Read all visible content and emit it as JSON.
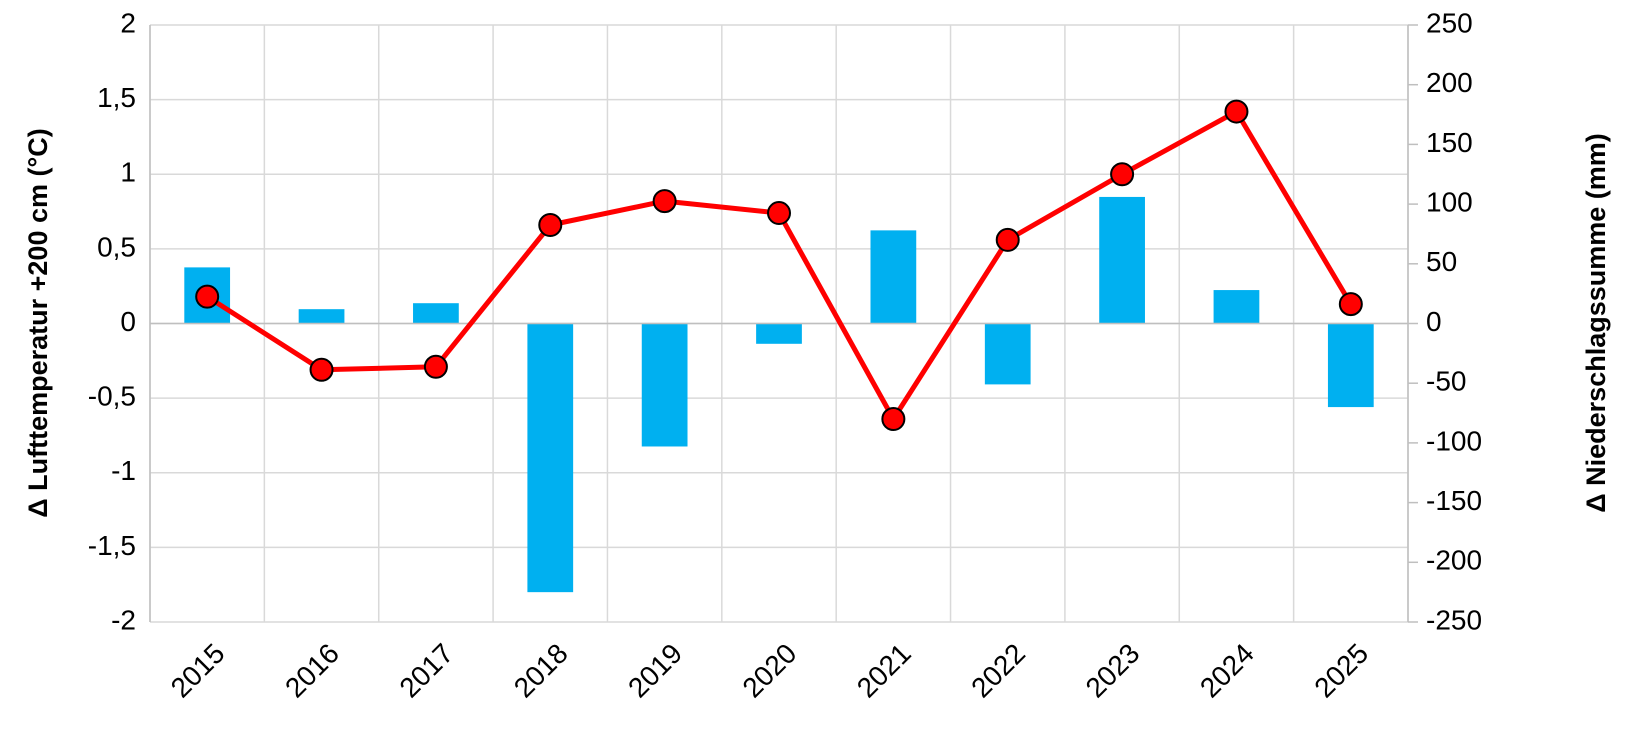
{
  "chart_data": {
    "type": "bar-line",
    "y_label": "Δ Lufttemperatur +200 cm (°C)",
    "y2_label": "Δ Niederschlagssumme (mm)",
    "categories": [
      "2015",
      "2016",
      "2017",
      "2018",
      "2019",
      "2020",
      "2021",
      "2022",
      "2023",
      "2024",
      "2025"
    ],
    "series": [
      {
        "type": "bar",
        "axis": "y2",
        "color": "#00b0f0",
        "values": [
          47,
          12,
          17,
          -225,
          -103,
          -17,
          78,
          -51,
          106,
          28,
          -70
        ]
      },
      {
        "type": "line",
        "axis": "y",
        "color": "#ff0000",
        "values": [
          0.18,
          -0.31,
          -0.29,
          0.66,
          0.82,
          0.74,
          -0.64,
          0.56,
          1.0,
          1.42,
          0.13
        ]
      }
    ],
    "ylim": [
      -2,
      2
    ],
    "yticks": [
      -2,
      {
        "value": -1.5,
        "label": "-1,5"
      },
      -1,
      {
        "value": -0.5,
        "label": "-0,5"
      },
      0,
      {
        "value": 0.5,
        "label": "0,5"
      },
      1,
      {
        "value": 1.5,
        "label": "1,5"
      },
      2
    ],
    "y2lim": [
      -250,
      250
    ],
    "y2ticks": [
      -250,
      -200,
      -150,
      -100,
      -50,
      0,
      50,
      100,
      150,
      200,
      250
    ],
    "grid": true
  }
}
